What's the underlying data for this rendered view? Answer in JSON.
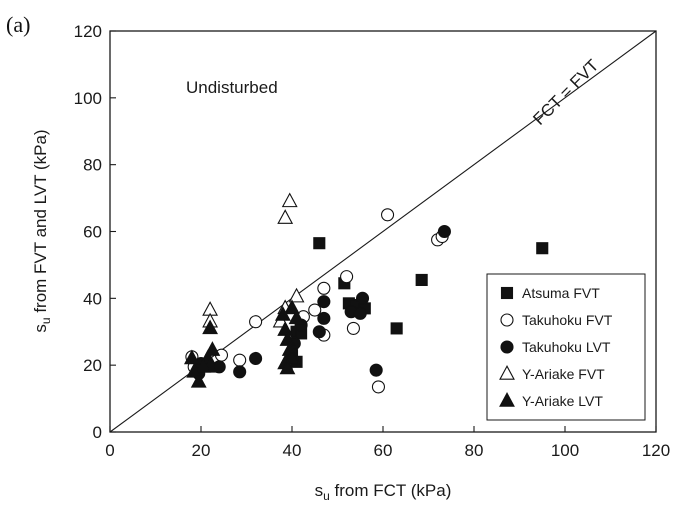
{
  "chart_data": {
    "type": "scatter",
    "panel_label": "(a)",
    "title": "",
    "xlabel_main": "s",
    "xlabel_sub": "u",
    "xlabel_rest": " from FCT (kPa)",
    "ylabel_main": "s",
    "ylabel_sub": "u",
    "ylabel_rest": " from FVT and LVT (kPa)",
    "xlim": [
      0,
      120
    ],
    "ylim": [
      0,
      120
    ],
    "xticks": [
      "0",
      "20",
      "40",
      "60",
      "80",
      "100",
      "120"
    ],
    "yticks": [
      "0",
      "20",
      "40",
      "60",
      "80",
      "100",
      "120"
    ],
    "grid": false,
    "legend_position": "bottom-right",
    "annotations": {
      "region_label": "Undisturbed",
      "line_label": "FCT = FVT"
    },
    "reference_line": {
      "x": [
        0,
        120
      ],
      "y": [
        0,
        120
      ]
    },
    "series": [
      {
        "name": "Atsuma FVT",
        "marker": "square",
        "filled": true,
        "points": [
          [
            46,
            56.5
          ],
          [
            95,
            55
          ],
          [
            68.5,
            45.5
          ],
          [
            51.5,
            44.5
          ],
          [
            63,
            31
          ],
          [
            52.5,
            38.5
          ],
          [
            54,
            38
          ],
          [
            56,
            37
          ],
          [
            41,
            30
          ],
          [
            42,
            29.5
          ],
          [
            41,
            21
          ],
          [
            40,
            23
          ]
        ]
      },
      {
        "name": "Takuhoku FVT",
        "marker": "circle",
        "filled": false,
        "points": [
          [
            61,
            65
          ],
          [
            72,
            57.5
          ],
          [
            73,
            58.5
          ],
          [
            52,
            46.5
          ],
          [
            47,
            43
          ],
          [
            45,
            36.5
          ],
          [
            47,
            29
          ],
          [
            42.5,
            34.5
          ],
          [
            53.5,
            31
          ],
          [
            32,
            33
          ],
          [
            59,
            13.5
          ],
          [
            28.5,
            21.5
          ],
          [
            24.5,
            23
          ],
          [
            18,
            22.5
          ],
          [
            18.5,
            19.5
          ]
        ]
      },
      {
        "name": "Takuhoku LVT",
        "marker": "circle",
        "filled": true,
        "points": [
          [
            73.5,
            60
          ],
          [
            55.5,
            40
          ],
          [
            47,
            39
          ],
          [
            47,
            34
          ],
          [
            53,
            36
          ],
          [
            55,
            35.5
          ],
          [
            46,
            30
          ],
          [
            58.5,
            18.5
          ],
          [
            42,
            32
          ],
          [
            40.5,
            26.5
          ],
          [
            32,
            22
          ],
          [
            28.5,
            18
          ],
          [
            24,
            19.5
          ],
          [
            20,
            20.5
          ],
          [
            19.5,
            17.5
          ]
        ]
      },
      {
        "name": "Y-Ariake FVT",
        "marker": "triangle",
        "filled": false,
        "points": [
          [
            39.5,
            69
          ],
          [
            38.5,
            64
          ],
          [
            41,
            40.5
          ],
          [
            38.5,
            37
          ],
          [
            37.5,
            33
          ],
          [
            22,
            36.5
          ],
          [
            22,
            33
          ]
        ]
      },
      {
        "name": "Y-Ariake LVT",
        "marker": "triangle",
        "filled": true,
        "points": [
          [
            40,
            37
          ],
          [
            41,
            34
          ],
          [
            38,
            35
          ],
          [
            38.5,
            30.5
          ],
          [
            39,
            27.5
          ],
          [
            39.5,
            24.5
          ],
          [
            40,
            22
          ],
          [
            38.5,
            20.5
          ],
          [
            39,
            19
          ],
          [
            22,
            31
          ],
          [
            22.5,
            24.5
          ],
          [
            21.5,
            22
          ],
          [
            22,
            19.5
          ],
          [
            20.5,
            19.5
          ],
          [
            18,
            22
          ],
          [
            18.5,
            18
          ],
          [
            19.5,
            15
          ]
        ]
      }
    ]
  }
}
